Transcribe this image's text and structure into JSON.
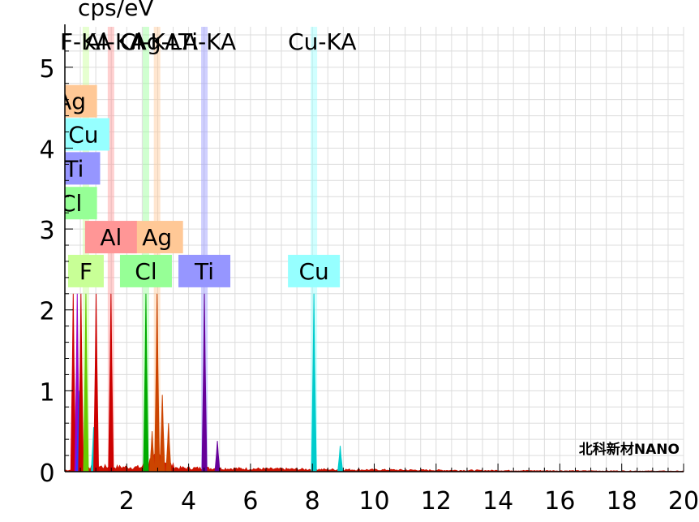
{
  "chart_data": {
    "type": "spectrum",
    "y_unit": "cps/eV",
    "xlim": [
      0,
      20
    ],
    "ylim": [
      0,
      5.5
    ],
    "x_ticks": [
      2,
      4,
      6,
      8,
      10,
      12,
      14,
      16,
      18,
      20
    ],
    "y_ticks": [
      0,
      1,
      2,
      3,
      4,
      5
    ],
    "grid": true,
    "top_labels": [
      {
        "text": "F-KA",
        "x": 0.68
      },
      {
        "text": "Al-KA",
        "x": 1.49
      },
      {
        "text": "Cl-KA",
        "x": 2.62
      },
      {
        "text": "Ag-LA",
        "x": 2.98
      },
      {
        "text": "Ti-KA",
        "x": 4.51
      },
      {
        "text": "Cu-KA",
        "x": 8.05
      }
    ],
    "element_markers": [
      {
        "element": "Ag",
        "x": 2.98,
        "y": 2.9,
        "color": "#ffc896"
      },
      {
        "element": "Cu",
        "x": 8.05,
        "y": 2.48,
        "color": "#96ffff"
      },
      {
        "element": "Ti",
        "x": 4.51,
        "y": 2.48,
        "color": "#9696ff"
      },
      {
        "element": "Cl",
        "x": 2.62,
        "y": 2.48,
        "color": "#96ff96"
      },
      {
        "element": "Al",
        "x": 1.49,
        "y": 2.9,
        "color": "#ff9696"
      },
      {
        "element": "F",
        "x": 0.68,
        "y": 2.48,
        "color": "#c8ff96"
      },
      {
        "element": "Ag",
        "x": 0.2,
        "y": 4.58,
        "color": "#ffc896"
      },
      {
        "element": "Cu",
        "x": 0.6,
        "y": 4.17,
        "color": "#96ffff"
      },
      {
        "element": "Ti",
        "x": 0.3,
        "y": 3.75,
        "color": "#9696ff"
      },
      {
        "element": "Cl",
        "x": 0.2,
        "y": 3.32,
        "color": "#96ff96"
      }
    ],
    "peaks": [
      {
        "x": 0.27,
        "y": 2.2,
        "color": "#cc0000"
      },
      {
        "x": 0.4,
        "y": 2.2,
        "color": "#9900cc"
      },
      {
        "x": 0.45,
        "y": 1.0,
        "color": "#3333ff"
      },
      {
        "x": 0.52,
        "y": 2.2,
        "color": "#cc0000"
      },
      {
        "x": 0.68,
        "y": 2.2,
        "color": "#66cc00"
      },
      {
        "x": 0.93,
        "y": 0.55,
        "color": "#00cccc"
      },
      {
        "x": 1.01,
        "y": 2.2,
        "color": "#cc0000"
      },
      {
        "x": 1.49,
        "y": 2.2,
        "color": "#cc0000"
      },
      {
        "x": 2.62,
        "y": 2.2,
        "color": "#00aa00"
      },
      {
        "x": 2.82,
        "y": 0.5,
        "color": "#cc4400"
      },
      {
        "x": 2.98,
        "y": 2.2,
        "color": "#cc4400"
      },
      {
        "x": 3.15,
        "y": 0.95,
        "color": "#cc4400"
      },
      {
        "x": 3.35,
        "y": 0.6,
        "color": "#cc4400"
      },
      {
        "x": 4.51,
        "y": 2.2,
        "color": "#660099"
      },
      {
        "x": 4.93,
        "y": 0.38,
        "color": "#660099"
      },
      {
        "x": 8.05,
        "y": 2.2,
        "color": "#00cccc"
      },
      {
        "x": 8.9,
        "y": 0.32,
        "color": "#00cccc"
      }
    ],
    "background_level": 0.05
  },
  "watermark": {
    "text": "北科新材NANO"
  }
}
